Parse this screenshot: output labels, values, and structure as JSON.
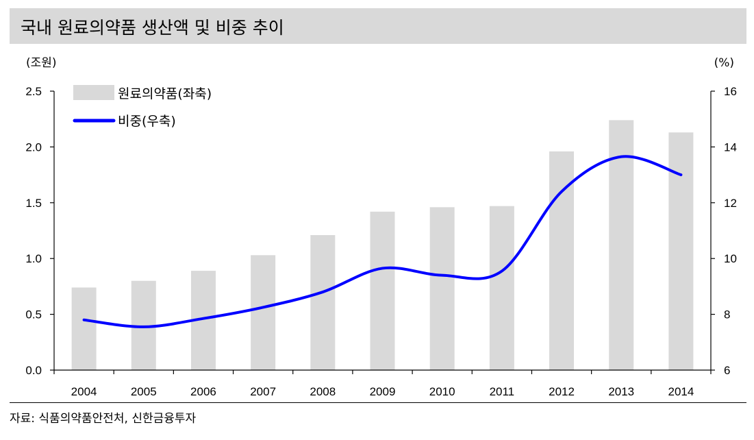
{
  "title": "국내 원료의약품 생산액 및 비중 추이",
  "source": "자료: 식품의약품안전처, 신한금융투자",
  "colors": {
    "bar": "#d9d9d9",
    "line": "#0000ff",
    "title_bg": "#d9d9d9"
  },
  "chart_data": {
    "type": "bar",
    "categories": [
      "2004",
      "2005",
      "2006",
      "2007",
      "2008",
      "2009",
      "2010",
      "2011",
      "2012",
      "2013",
      "2014"
    ],
    "series": [
      {
        "name": "원료의약품(좌축)",
        "type": "bar",
        "axis": "left",
        "values": [
          0.74,
          0.8,
          0.89,
          1.03,
          1.21,
          1.42,
          1.46,
          1.47,
          1.96,
          2.24,
          2.13
        ]
      },
      {
        "name": "비중(우축)",
        "type": "line",
        "axis": "right",
        "values": [
          7.8,
          7.55,
          7.85,
          8.25,
          8.8,
          9.65,
          9.4,
          9.55,
          12.4,
          13.65,
          13.0
        ]
      }
    ],
    "left_axis": {
      "unit": "(조원)",
      "ylim": [
        0,
        2.5
      ],
      "ticks": [
        "0.0",
        "0.5",
        "1.0",
        "1.5",
        "2.0",
        "2.5"
      ]
    },
    "right_axis": {
      "unit": "(%)",
      "ylim": [
        6,
        16
      ],
      "ticks": [
        "6",
        "8",
        "10",
        "12",
        "14",
        "16"
      ]
    },
    "legend_position": "top-left",
    "grid": false
  }
}
